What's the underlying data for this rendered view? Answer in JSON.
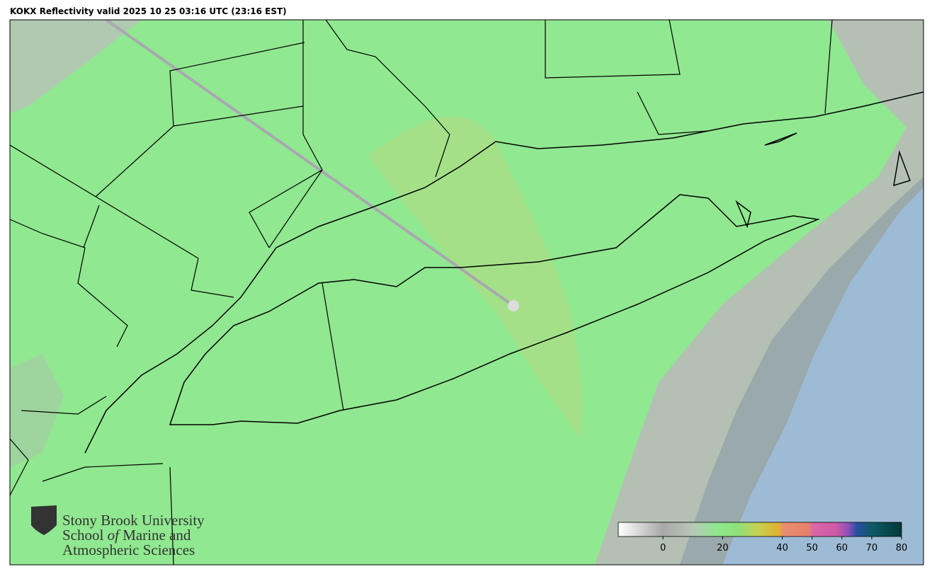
{
  "title": "KOKX Reflectivity valid 2025 10 25 03:16 UTC (23:16 EST)",
  "logo": {
    "line1": "Stony Brook University",
    "line2": [
      "School",
      "of",
      "Marine and"
    ],
    "line3": "Atmospheric Sciences"
  },
  "colorbar": {
    "lim": [
      -15,
      80
    ],
    "ticks": [
      0,
      20,
      40,
      50,
      60,
      70,
      80
    ],
    "stops": [
      {
        "value": -15,
        "color": "#ffffff"
      },
      {
        "value": 0,
        "color": "#a8a8a8"
      },
      {
        "value": 10,
        "color": "#b8c8b8"
      },
      {
        "value": 18,
        "color": "#8fe88f"
      },
      {
        "value": 25,
        "color": "#90e07a"
      },
      {
        "value": 32,
        "color": "#c8d050"
      },
      {
        "value": 39,
        "color": "#e0b030"
      },
      {
        "value": 40,
        "color": "#e89070"
      },
      {
        "value": 49,
        "color": "#e8806a"
      },
      {
        "value": 50,
        "color": "#d868a8"
      },
      {
        "value": 58,
        "color": "#d05aa8"
      },
      {
        "value": 62,
        "color": "#9050b8"
      },
      {
        "value": 65,
        "color": "#2850a0"
      },
      {
        "value": 70,
        "color": "#105a68"
      },
      {
        "value": 80,
        "color": "#003838"
      }
    ]
  }
}
